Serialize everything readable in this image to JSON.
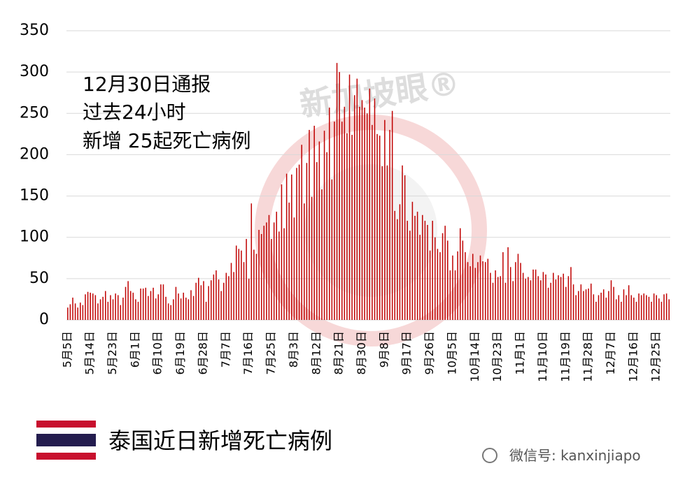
{
  "chart_data": {
    "type": "bar",
    "annotation": [
      "12月30日通报",
      "过去24小时",
      "新增 25起死亡病例"
    ],
    "caption": "泰国近日新增死亡病例",
    "watermark": "新加坡眼®",
    "wechat": "微信号: kanxinjiapo",
    "color": "#c00000",
    "ylim": [
      0,
      350
    ],
    "yticks": [
      0,
      50,
      100,
      150,
      200,
      250,
      300,
      350
    ],
    "grid": true,
    "categories": [
      "5月5日",
      null,
      null,
      null,
      null,
      null,
      null,
      null,
      null,
      "5月14日",
      null,
      null,
      null,
      null,
      null,
      null,
      null,
      null,
      "5月23日",
      null,
      null,
      null,
      null,
      null,
      null,
      null,
      null,
      "6月1日",
      null,
      null,
      null,
      null,
      null,
      null,
      null,
      null,
      "6月10日",
      null,
      null,
      null,
      null,
      null,
      null,
      null,
      null,
      "6月19日",
      null,
      null,
      null,
      null,
      null,
      null,
      null,
      null,
      "6月28日",
      null,
      null,
      null,
      null,
      null,
      null,
      null,
      null,
      "7月7日",
      null,
      null,
      null,
      null,
      null,
      null,
      null,
      null,
      "7月16日",
      null,
      null,
      null,
      null,
      null,
      null,
      null,
      null,
      "7月25日",
      null,
      null,
      null,
      null,
      null,
      null,
      null,
      null,
      "8月3日",
      null,
      null,
      null,
      null,
      null,
      null,
      null,
      null,
      "8月12日",
      null,
      null,
      null,
      null,
      null,
      null,
      null,
      null,
      "8月21日",
      null,
      null,
      null,
      null,
      null,
      null,
      null,
      null,
      "8月30日",
      null,
      null,
      null,
      null,
      null,
      null,
      null,
      null,
      "9月8日",
      null,
      null,
      null,
      null,
      null,
      null,
      null,
      null,
      "9月17日",
      null,
      null,
      null,
      null,
      null,
      null,
      null,
      null,
      "9月26日",
      null,
      null,
      null,
      null,
      null,
      null,
      null,
      null,
      "10月5日",
      null,
      null,
      null,
      null,
      null,
      null,
      null,
      null,
      "10月14日",
      null,
      null,
      null,
      null,
      null,
      null,
      null,
      null,
      "10月23日",
      null,
      null,
      null,
      null,
      null,
      null,
      null,
      null,
      "11月1日",
      null,
      null,
      null,
      null,
      null,
      null,
      null,
      null,
      "11月10日",
      null,
      null,
      null,
      null,
      null,
      null,
      null,
      null,
      "11月19日",
      null,
      null,
      null,
      null,
      null,
      null,
      null,
      null,
      "11月28日",
      null,
      null,
      null,
      null,
      null,
      null,
      null,
      null,
      "12月7日",
      null,
      null,
      null,
      null,
      null,
      null,
      null,
      null,
      "12月16日",
      null,
      null,
      null,
      null,
      null,
      null,
      null,
      null,
      "12月25日",
      null,
      null,
      null,
      null,
      null
    ],
    "values": [
      15,
      19,
      27,
      20,
      15,
      21,
      18,
      31,
      34,
      33,
      32,
      30,
      20,
      25,
      28,
      35,
      22,
      30,
      25,
      32,
      30,
      18,
      27,
      40,
      47,
      35,
      33,
      25,
      22,
      38,
      38,
      39,
      29,
      35,
      39,
      26,
      31,
      43,
      43,
      28,
      20,
      18,
      25,
      40,
      32,
      26,
      33,
      27,
      25,
      36,
      29,
      45,
      51,
      42,
      47,
      22,
      41,
      48,
      55,
      60,
      49,
      35,
      45,
      57,
      53,
      69,
      58,
      90,
      86,
      84,
      70,
      98,
      50,
      141,
      85,
      80,
      109,
      104,
      114,
      118,
      127,
      98,
      118,
      131,
      107,
      164,
      111,
      177,
      142,
      176,
      124,
      184,
      188,
      212,
      141,
      190,
      230,
      149,
      235,
      191,
      216,
      158,
      229,
      203,
      257,
      170,
      240,
      311,
      300,
      240,
      258,
      226,
      297,
      224,
      272,
      292,
      258,
      266,
      257,
      250,
      280,
      236,
      268,
      225,
      223,
      186,
      242,
      187,
      230,
      253,
      132,
      122,
      140,
      187,
      175,
      120,
      108,
      143,
      126,
      131,
      103,
      127,
      120,
      115,
      84,
      120,
      100,
      86,
      82,
      105,
      114,
      96,
      60,
      78,
      60,
      83,
      111,
      96,
      82,
      70,
      65,
      80,
      63,
      70,
      78,
      71,
      70,
      74,
      57,
      45,
      60,
      52,
      53,
      82,
      45,
      88,
      64,
      47,
      70,
      80,
      69,
      57,
      50,
      52,
      48,
      61,
      61,
      53,
      48,
      58,
      55,
      39,
      45,
      57,
      49,
      54,
      52,
      56,
      40,
      53,
      64,
      43,
      30,
      35,
      43,
      35,
      37,
      38,
      44,
      31,
      22,
      30,
      33,
      37,
      27,
      35,
      48,
      40,
      25,
      30,
      22,
      37,
      30,
      42,
      30,
      27,
      22,
      32,
      30,
      32,
      30,
      28,
      22,
      32,
      30,
      26,
      22,
      31,
      32,
      25
    ]
  }
}
